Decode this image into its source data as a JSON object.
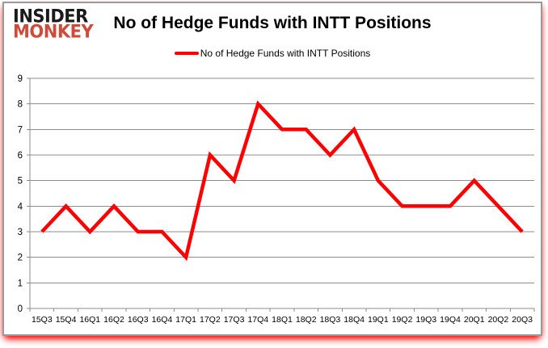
{
  "logo": {
    "line1": "INSIDER",
    "line2": "MONKEY"
  },
  "header": {
    "title": "No of Hedge Funds with INTT Positions"
  },
  "legend": {
    "label": "No of Hedge Funds with INTT Positions"
  },
  "colors": {
    "series_line": "#ff0000",
    "grid": "#8c8c8c",
    "axis": "#8c8c8c",
    "tick_text": "#000000",
    "title_text": "#000000",
    "logo_primary": "#1a1a1a",
    "logo_accent": "#cf4a38",
    "card_border": "#9a9a9a",
    "glow": "#ff0000"
  },
  "chart_data": {
    "type": "line",
    "title": "No of Hedge Funds with INTT Positions",
    "categories": [
      "15Q3",
      "15Q4",
      "16Q1",
      "16Q2",
      "16Q3",
      "16Q4",
      "17Q1",
      "17Q2",
      "17Q3",
      "17Q4",
      "18Q1",
      "18Q2",
      "18Q3",
      "18Q4",
      "19Q1",
      "19Q2",
      "19Q3",
      "19Q4",
      "20Q1",
      "20Q2",
      "20Q3"
    ],
    "series": [
      {
        "name": "No of Hedge Funds with INTT Positions",
        "color": "#ff0000",
        "values": [
          3,
          4,
          3,
          4,
          3,
          3,
          2,
          6,
          5,
          8,
          7,
          7,
          6,
          7,
          5,
          4,
          4,
          4,
          5,
          4,
          3
        ]
      }
    ],
    "xlabel": "",
    "ylabel": "",
    "ylim": [
      0,
      9
    ],
    "ytick_step": 1,
    "grid": true,
    "legend_position": "top"
  }
}
